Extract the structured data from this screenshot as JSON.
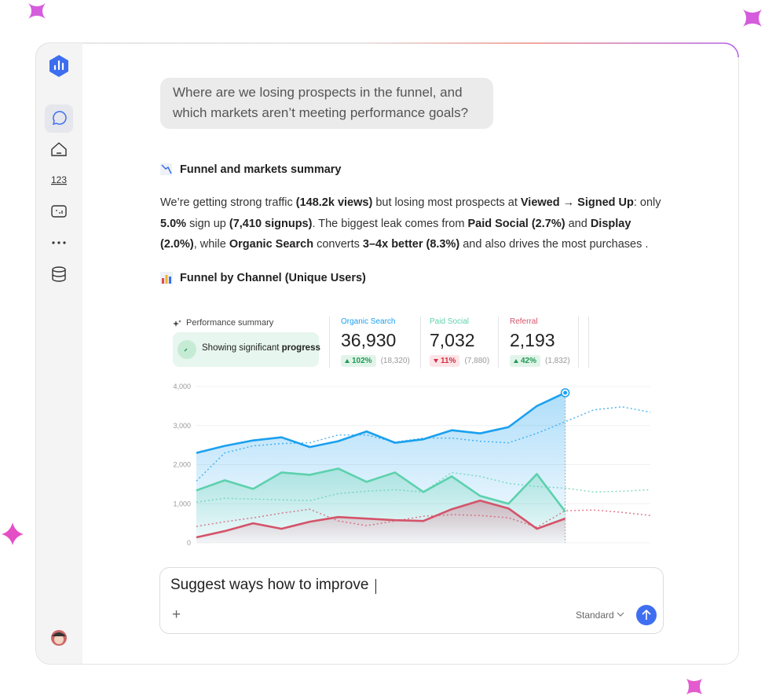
{
  "sidebar": {
    "nav_numbers": "123"
  },
  "question": "Where are we losing prospects in the funnel, and which markets aren’t meeting performance goals?",
  "summary_heading": "Funnel and markets summary",
  "paragraph": [
    {
      "text": "We’re getting strong traffic ",
      "strong": false
    },
    {
      "text": "(148.2k views)",
      "strong": true
    },
    {
      "text": " but losing most prospects at ",
      "strong": false
    },
    {
      "text": "Viewed → Signed Up",
      "strong": true
    },
    {
      "text": ": only ",
      "strong": false
    },
    {
      "text": "5.0%",
      "strong": true
    },
    {
      "text": " sign up ",
      "strong": false
    },
    {
      "text": "(7,410 signups)",
      "strong": true
    },
    {
      "text": ". The biggest leak comes from ",
      "strong": false
    },
    {
      "text": "Paid Social (2.7%)",
      "strong": true
    },
    {
      "text": " and ",
      "strong": false
    },
    {
      "text": "Display (2.0%)",
      "strong": true
    },
    {
      "text": ", while ",
      "strong": false
    },
    {
      "text": "Organic Search",
      "strong": true
    },
    {
      "text": " converts ",
      "strong": false
    },
    {
      "text": "3–4x better (8.3%)",
      "strong": true
    },
    {
      "text": " and also drives the most purchases .",
      "strong": false
    }
  ],
  "chart_heading": "Funnel by Channel (Unique Users)",
  "performance": {
    "label": "Performance summary",
    "status": "Showing significant ",
    "status_strong": "progress"
  },
  "chart_data": {
    "type": "line",
    "ylim": [
      0,
      4000
    ],
    "yticks": [
      0,
      {
        "value": 1000,
        "label": "1,000"
      },
      {
        "value": 2000,
        "label": "2,000"
      },
      {
        "value": 3000,
        "label": "3,000"
      },
      {
        "value": 4000,
        "label": "4,000"
      }
    ],
    "grid": true,
    "series": [
      {
        "name": "Organic Search",
        "color": "#1aa0ef",
        "total": "36,930",
        "change": "102%",
        "trend": "up",
        "baseline": "(18,320)",
        "values": [
          2300,
          2480,
          2620,
          2700,
          2450,
          2600,
          2850,
          2560,
          2650,
          2880,
          2800,
          2960,
          3500,
          3840
        ],
        "comparison": [
          1580,
          2300,
          2480,
          2540,
          2560,
          2760,
          2760,
          2580,
          2680,
          2680,
          2600,
          2560,
          2800,
          3100,
          3400,
          3480,
          3340
        ]
      },
      {
        "name": "Paid Social",
        "color": "#5dd1ad",
        "total": "7,032",
        "change": "11%",
        "trend": "down",
        "baseline": "(7,880)",
        "values": [
          1340,
          1600,
          1380,
          1800,
          1740,
          1900,
          1560,
          1800,
          1300,
          1700,
          1200,
          1000,
          1760,
          800
        ],
        "comparison": [
          1040,
          1140,
          1120,
          1100,
          1080,
          1260,
          1320,
          1360,
          1300,
          1800,
          1700,
          1520,
          1440,
          1400,
          1300,
          1320,
          1360
        ]
      },
      {
        "name": "Referral",
        "color": "#d4536a",
        "total": "2,193",
        "change": "42%",
        "trend": "up",
        "baseline": "(1,832)",
        "values": [
          140,
          300,
          500,
          360,
          540,
          660,
          620,
          580,
          560,
          860,
          1080,
          880,
          360,
          620
        ],
        "comparison": [
          420,
          540,
          640,
          760,
          860,
          560,
          440,
          560,
          680,
          720,
          700,
          640,
          400,
          820,
          840,
          780,
          700
        ]
      }
    ]
  },
  "composer": {
    "text": "Suggest ways how to improve",
    "add": "+",
    "mode": "Standard"
  }
}
